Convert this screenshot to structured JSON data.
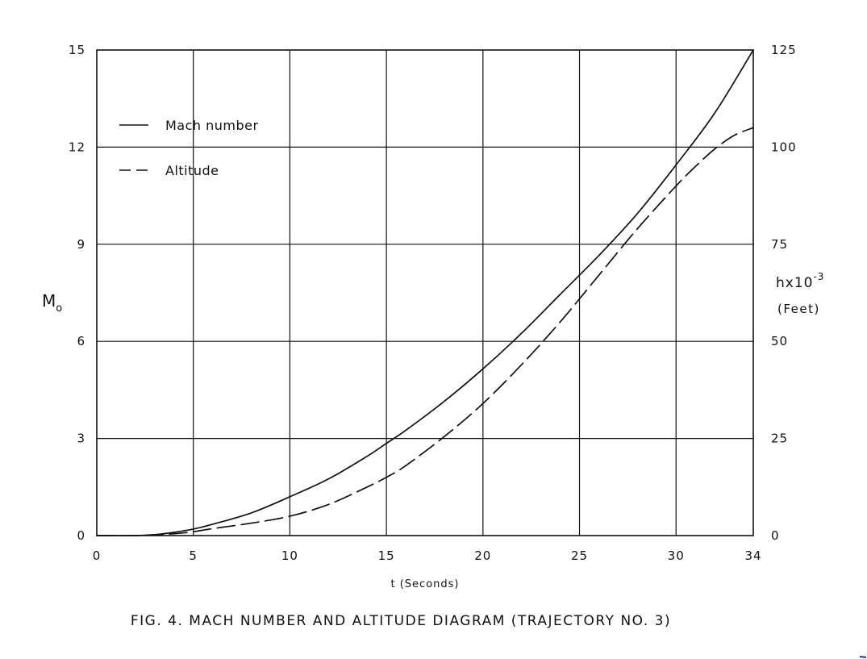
{
  "caption": "FIG. 4. MACH NUMBER AND ALTITUDE DIAGRAM (TRAJECTORY NO. 3)",
  "colors": {
    "ink": "#111111",
    "background": "#ffffff"
  },
  "chart_data": {
    "type": "line",
    "title": "FIG. 4. MACH NUMBER AND ALTITUDE DIAGRAM (TRAJECTORY NO. 3)",
    "xlabel": "t (Seconds)",
    "ylabel_left": "M",
    "ylabel_left_sub": "o",
    "ylabel_right_main": "hx10",
    "ylabel_right_exp": "-3",
    "ylabel_right_unit": "(Feet)",
    "xlim": [
      0,
      34
    ],
    "ylim_left": [
      0,
      15
    ],
    "ylim_right": [
      0,
      125
    ],
    "x_ticks": [
      0,
      5,
      10,
      15,
      20,
      25,
      30,
      34
    ],
    "y_left_ticks": [
      0,
      3,
      6,
      9,
      12,
      15
    ],
    "y_right_ticks": [
      0,
      25,
      50,
      75,
      100,
      125
    ],
    "grid": true,
    "legend": {
      "position": "top-left",
      "entries": [
        "Mach number",
        "Altitude"
      ]
    },
    "series": [
      {
        "name": "Mach number",
        "axis": "left",
        "style": "solid",
        "x": [
          0,
          2,
          3,
          4,
          5,
          6,
          8,
          10,
          12,
          14,
          15,
          16,
          18,
          20,
          22,
          24,
          26,
          28,
          30,
          32,
          34
        ],
        "y": [
          0,
          0,
          0.03,
          0.1,
          0.2,
          0.35,
          0.7,
          1.2,
          1.75,
          2.45,
          2.85,
          3.25,
          4.15,
          5.15,
          6.25,
          7.45,
          8.65,
          9.95,
          11.45,
          13.05,
          15.0
        ]
      },
      {
        "name": "Altitude",
        "axis": "right",
        "style": "dashed",
        "x": [
          0,
          2,
          4,
          5,
          6,
          8,
          10,
          12,
          14,
          15,
          16,
          18,
          20,
          22,
          24,
          26,
          28,
          30,
          31,
          32,
          33,
          34
        ],
        "y": [
          0,
          0,
          0.5,
          1,
          1.8,
          3.2,
          5,
          8,
          12.5,
          15,
          18,
          25.5,
          34,
          44,
          55,
          67,
          79,
          90,
          95,
          99.5,
          103,
          105
        ]
      }
    ]
  }
}
